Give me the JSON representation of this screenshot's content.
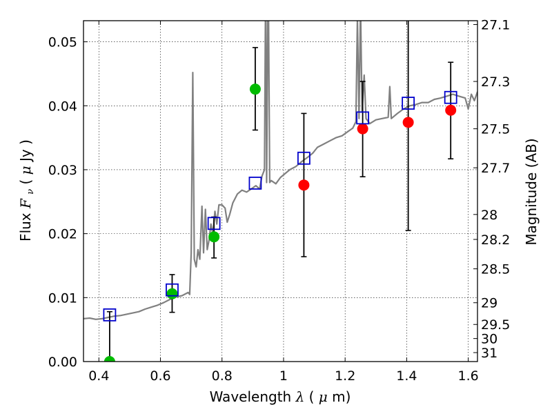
{
  "chart_data": {
    "type": "scatter",
    "xlabel_parts": [
      "Wavelength  ",
      "λ",
      " (",
      "μ",
      "m)"
    ],
    "ylabel_parts": [
      "Flux  ",
      "F",
      "ν",
      "  ( ",
      "μ",
      "Jy )"
    ],
    "y2label": "Magnitude (AB)",
    "xlim": [
      0.35,
      1.63
    ],
    "ylim": [
      0.0,
      0.0533
    ],
    "grid": true,
    "x_ticks": [
      {
        "value": 0.4,
        "label": "0.4"
      },
      {
        "value": 0.6,
        "label": "0.6"
      },
      {
        "value": 0.8,
        "label": "0.8"
      },
      {
        "value": 1.0,
        "label": "1"
      },
      {
        "value": 1.2,
        "label": "1.2"
      },
      {
        "value": 1.4,
        "label": "1.4"
      },
      {
        "value": 1.6,
        "label": "1.6"
      }
    ],
    "y_ticks": [
      {
        "value": 0.0,
        "label": "0.00"
      },
      {
        "value": 0.01,
        "label": "0.01"
      },
      {
        "value": 0.02,
        "label": "0.02"
      },
      {
        "value": 0.03,
        "label": "0.03"
      },
      {
        "value": 0.04,
        "label": "0.04"
      },
      {
        "value": 0.05,
        "label": "0.05"
      }
    ],
    "y2_ticks": [
      {
        "label": "27.1",
        "flux": 0.0527
      },
      {
        "label": "27.3",
        "flux": 0.0438
      },
      {
        "label": "27.5",
        "flux": 0.0364
      },
      {
        "label": "27.7",
        "flux": 0.0303
      },
      {
        "label": "28",
        "flux": 0.023
      },
      {
        "label": "28.2",
        "flux": 0.0191
      },
      {
        "label": "28.5",
        "flux": 0.0145
      },
      {
        "label": "29",
        "flux": 0.0092
      },
      {
        "label": "29.5",
        "flux": 0.0058
      },
      {
        "label": "30",
        "flux": 0.0036
      },
      {
        "label": "31",
        "flux": 0.0014
      }
    ],
    "series": [
      {
        "kind": "photometry_points_green",
        "color": "#00bb00",
        "points": [
          {
            "x": 0.435,
            "y": 0.0,
            "err_low": 0.0,
            "err_high": 0.0078
          },
          {
            "x": 0.638,
            "y": 0.0106,
            "err_low": 0.0077,
            "err_high": 0.0136
          },
          {
            "x": 0.774,
            "y": 0.0195,
            "err_low": 0.0162,
            "err_high": 0.0226
          },
          {
            "x": 0.908,
            "y": 0.0426,
            "err_low": 0.0362,
            "err_high": 0.0491
          }
        ]
      },
      {
        "kind": "photometry_points_red",
        "color": "#ff0000",
        "points": [
          {
            "x": 1.066,
            "y": 0.0276,
            "err_low": 0.0164,
            "err_high": 0.0388
          },
          {
            "x": 1.257,
            "y": 0.0364,
            "err_low": 0.0289,
            "err_high": 0.0438
          },
          {
            "x": 1.405,
            "y": 0.0374,
            "err_low": 0.0205,
            "err_high": 0.0545
          },
          {
            "x": 1.543,
            "y": 0.0393,
            "err_low": 0.0317,
            "err_high": 0.0468
          }
        ]
      },
      {
        "kind": "model_synthetic_photometry",
        "color": "#0000cc",
        "points": [
          {
            "x": 0.435,
            "y": 0.0073
          },
          {
            "x": 0.638,
            "y": 0.0112
          },
          {
            "x": 0.774,
            "y": 0.0216
          },
          {
            "x": 0.908,
            "y": 0.0279
          },
          {
            "x": 1.066,
            "y": 0.0318
          },
          {
            "x": 1.257,
            "y": 0.0381
          },
          {
            "x": 1.405,
            "y": 0.0404
          },
          {
            "x": 1.543,
            "y": 0.0413
          }
        ]
      },
      {
        "kind": "model_spectrum",
        "color": "#808080",
        "points": [
          [
            0.35,
            0.0067
          ],
          [
            0.37,
            0.0068
          ],
          [
            0.39,
            0.0066
          ],
          [
            0.41,
            0.0067
          ],
          [
            0.43,
            0.0069
          ],
          [
            0.45,
            0.0071
          ],
          [
            0.47,
            0.0072
          ],
          [
            0.49,
            0.0074
          ],
          [
            0.51,
            0.0076
          ],
          [
            0.53,
            0.0078
          ],
          [
            0.55,
            0.0082
          ],
          [
            0.57,
            0.0085
          ],
          [
            0.59,
            0.0088
          ],
          [
            0.61,
            0.0092
          ],
          [
            0.63,
            0.0097
          ],
          [
            0.65,
            0.0101
          ],
          [
            0.67,
            0.0103
          ],
          [
            0.69,
            0.0108
          ],
          [
            0.695,
            0.0105
          ],
          [
            0.7,
            0.017
          ],
          [
            0.705,
            0.0452
          ],
          [
            0.71,
            0.016
          ],
          [
            0.716,
            0.0148
          ],
          [
            0.722,
            0.0175
          ],
          [
            0.728,
            0.016
          ],
          [
            0.735,
            0.0243
          ],
          [
            0.74,
            0.017
          ],
          [
            0.746,
            0.0238
          ],
          [
            0.752,
            0.0175
          ],
          [
            0.758,
            0.019
          ],
          [
            0.764,
            0.0215
          ],
          [
            0.77,
            0.02
          ],
          [
            0.777,
            0.0235
          ],
          [
            0.783,
            0.0215
          ],
          [
            0.79,
            0.0245
          ],
          [
            0.8,
            0.0245
          ],
          [
            0.81,
            0.024
          ],
          [
            0.817,
            0.0218
          ],
          [
            0.825,
            0.023
          ],
          [
            0.835,
            0.0248
          ],
          [
            0.85,
            0.0262
          ],
          [
            0.865,
            0.0268
          ],
          [
            0.88,
            0.0265
          ],
          [
            0.895,
            0.027
          ],
          [
            0.91,
            0.0275
          ],
          [
            0.922,
            0.027
          ],
          [
            0.93,
            0.029
          ],
          [
            0.938,
            0.03
          ],
          [
            0.942,
            0.062
          ],
          [
            0.945,
            0.028
          ],
          [
            0.95,
            0.062
          ],
          [
            0.955,
            0.028
          ],
          [
            0.96,
            0.0283
          ],
          [
            0.975,
            0.0278
          ],
          [
            0.99,
            0.0288
          ],
          [
            1.0,
            0.0292
          ],
          [
            1.02,
            0.03
          ],
          [
            1.04,
            0.0305
          ],
          [
            1.06,
            0.0313
          ],
          [
            1.08,
            0.032
          ],
          [
            1.095,
            0.0326
          ],
          [
            1.11,
            0.0335
          ],
          [
            1.13,
            0.034
          ],
          [
            1.15,
            0.0345
          ],
          [
            1.17,
            0.035
          ],
          [
            1.19,
            0.0353
          ],
          [
            1.21,
            0.036
          ],
          [
            1.225,
            0.0365
          ],
          [
            1.235,
            0.0375
          ],
          [
            1.24,
            0.054
          ],
          [
            1.245,
            0.038
          ],
          [
            1.25,
            0.056
          ],
          [
            1.255,
            0.039
          ],
          [
            1.262,
            0.0448
          ],
          [
            1.268,
            0.038
          ],
          [
            1.28,
            0.0372
          ],
          [
            1.3,
            0.0378
          ],
          [
            1.32,
            0.038
          ],
          [
            1.34,
            0.0382
          ],
          [
            1.345,
            0.043
          ],
          [
            1.35,
            0.038
          ],
          [
            1.37,
            0.0388
          ],
          [
            1.39,
            0.0395
          ],
          [
            1.41,
            0.04
          ],
          [
            1.43,
            0.0402
          ],
          [
            1.45,
            0.0405
          ],
          [
            1.47,
            0.0405
          ],
          [
            1.49,
            0.041
          ],
          [
            1.51,
            0.0412
          ],
          [
            1.53,
            0.0415
          ],
          [
            1.55,
            0.0418
          ],
          [
            1.57,
            0.0415
          ],
          [
            1.59,
            0.0412
          ],
          [
            1.6,
            0.0395
          ],
          [
            1.61,
            0.0418
          ],
          [
            1.62,
            0.0408
          ],
          [
            1.63,
            0.0422
          ]
        ]
      }
    ]
  }
}
